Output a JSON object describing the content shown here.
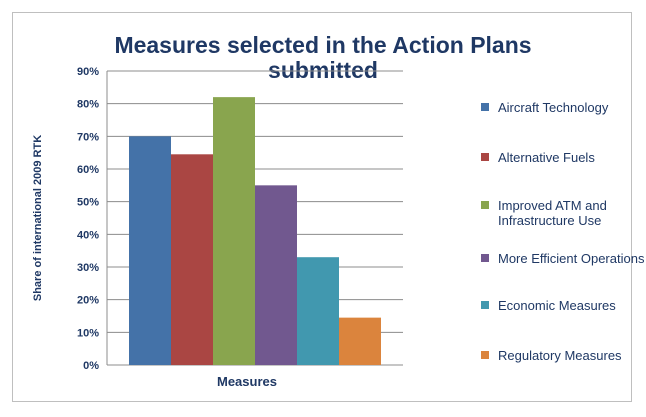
{
  "chart_data": {
    "type": "bar",
    "title": "Measures selected in the Action Plans\nsubmitted",
    "xlabel": "Measures",
    "ylabel": "Share of international 2009 RTK",
    "ylim": [
      0,
      0.9
    ],
    "yticks": [
      "0%",
      "10%",
      "20%",
      "30%",
      "40%",
      "50%",
      "60%",
      "70%",
      "80%",
      "90%"
    ],
    "grid": true,
    "legend_position": "right",
    "series": [
      {
        "name": "Aircraft Technology",
        "value": 0.7,
        "color": "#4472a8"
      },
      {
        "name": "Alternative Fuels",
        "value": 0.645,
        "color": "#aa4643"
      },
      {
        "name": "Improved ATM and Infrastructure Use",
        "value": 0.82,
        "color": "#89a54e"
      },
      {
        "name": "More Efficient Operations",
        "value": 0.55,
        "color": "#71588f"
      },
      {
        "name": "Economic Measures",
        "value": 0.33,
        "color": "#4198af"
      },
      {
        "name": "Regulatory Measures",
        "value": 0.145,
        "color": "#db843d"
      }
    ]
  }
}
